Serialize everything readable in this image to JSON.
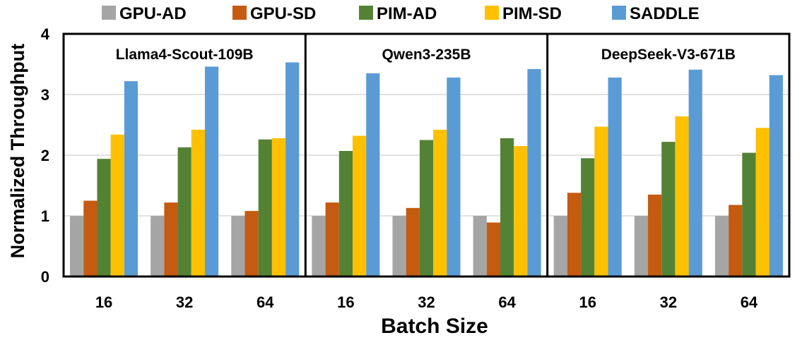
{
  "chart_data": {
    "type": "bar",
    "xlabel": "Batch Size",
    "ylabel": "Normalized Throughput",
    "ylim": [
      0,
      4
    ],
    "yticks": [
      0,
      1,
      2,
      3,
      4
    ],
    "grid": true,
    "legend_position": "top",
    "series_names": [
      "GPU-AD",
      "GPU-SD",
      "PIM-AD",
      "PIM-SD",
      "SADDLE"
    ],
    "series_colors": [
      "#a5a5a5",
      "#c55a11",
      "#548235",
      "#ffc000",
      "#5b9bd5"
    ],
    "categories": [
      "16",
      "32",
      "64"
    ],
    "panels": [
      {
        "title": "Llama4-Scout-109B",
        "series": [
          {
            "name": "GPU-AD",
            "values": [
              1.0,
              1.0,
              1.0
            ]
          },
          {
            "name": "GPU-SD",
            "values": [
              1.25,
              1.22,
              1.08
            ]
          },
          {
            "name": "PIM-AD",
            "values": [
              1.94,
              2.13,
              2.26
            ]
          },
          {
            "name": "PIM-SD",
            "values": [
              2.34,
              2.42,
              2.28
            ]
          },
          {
            "name": "SADDLE",
            "values": [
              3.22,
              3.46,
              3.53
            ]
          }
        ]
      },
      {
        "title": "Qwen3-235B",
        "series": [
          {
            "name": "GPU-AD",
            "values": [
              1.0,
              1.0,
              1.0
            ]
          },
          {
            "name": "GPU-SD",
            "values": [
              1.22,
              1.13,
              0.89
            ]
          },
          {
            "name": "PIM-AD",
            "values": [
              2.07,
              2.25,
              2.28
            ]
          },
          {
            "name": "PIM-SD",
            "values": [
              2.32,
              2.42,
              2.15
            ]
          },
          {
            "name": "SADDLE",
            "values": [
              3.35,
              3.28,
              3.42
            ]
          }
        ]
      },
      {
        "title": "DeepSeek-V3-671B",
        "series": [
          {
            "name": "GPU-AD",
            "values": [
              1.0,
              1.0,
              1.0
            ]
          },
          {
            "name": "GPU-SD",
            "values": [
              1.38,
              1.35,
              1.18
            ]
          },
          {
            "name": "PIM-AD",
            "values": [
              1.95,
              2.22,
              2.04
            ]
          },
          {
            "name": "PIM-SD",
            "values": [
              2.47,
              2.64,
              2.45
            ]
          },
          {
            "name": "SADDLE",
            "values": [
              3.28,
              3.41,
              3.32
            ]
          }
        ]
      }
    ]
  }
}
